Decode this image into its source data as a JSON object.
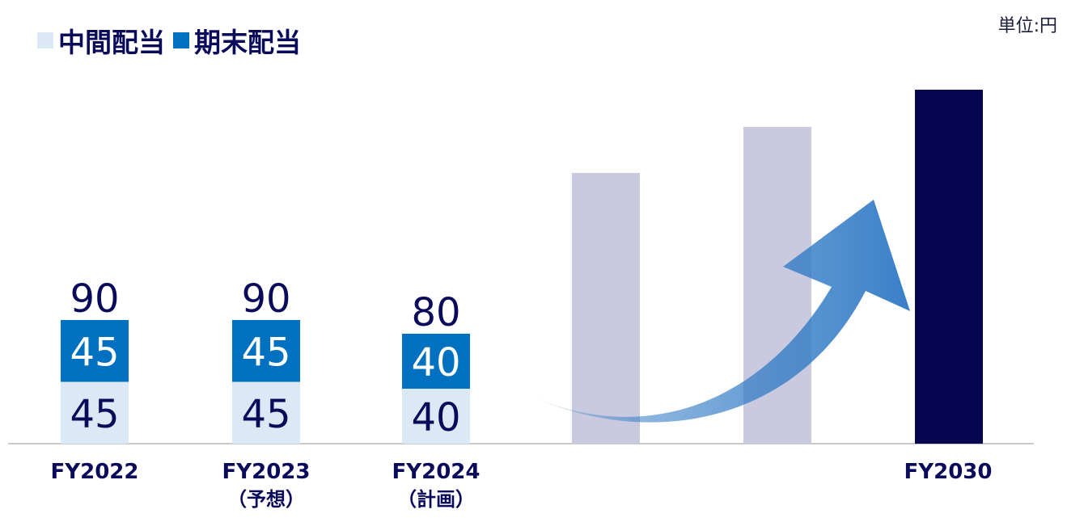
{
  "unit_label": "単位:円",
  "legend": [
    {
      "label": "中間配当",
      "color": "#dbe8f5"
    },
    {
      "label": "期末配当",
      "color": "#0070c0"
    }
  ],
  "colors": {
    "interim": "#dbe8f5",
    "final": "#0070c0",
    "ghost": "#c9cadf",
    "target": "#050550",
    "axis": "#c8c8c8",
    "text_dark": "#0a0a5a",
    "arrow": "#2f79c5"
  },
  "chart_data": {
    "type": "bar",
    "stacked": true,
    "categories": [
      "FY2022",
      "FY2023\n（予想）",
      "FY2024\n（計画）",
      "",
      "",
      "FY2030"
    ],
    "series": [
      {
        "name": "中間配当",
        "values": [
          45,
          45,
          40,
          null,
          null,
          null
        ]
      },
      {
        "name": "期末配当",
        "values": [
          45,
          45,
          40,
          null,
          null,
          null
        ]
      }
    ],
    "totals": [
      90,
      90,
      80,
      null,
      null,
      null
    ],
    "illustrative_bars": [
      {
        "category_index": 3,
        "style": "ghost"
      },
      {
        "category_index": 4,
        "style": "ghost"
      },
      {
        "category_index": 5,
        "style": "target"
      }
    ],
    "annotation": "upward growth arrow from FY2024 to FY2030",
    "legend_position": "top-left",
    "grid": false
  }
}
